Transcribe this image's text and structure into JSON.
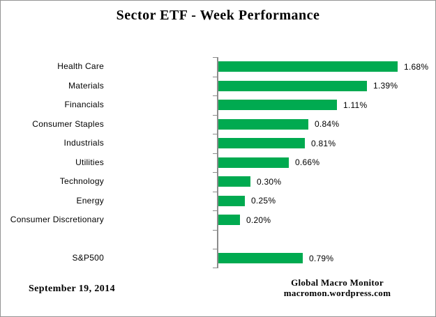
{
  "title": "Sector ETF - Week Performance",
  "footer": {
    "date": "September 19, 2014",
    "source_line1": "Global Macro Monitor",
    "source_line2": "macromon.wordpress.com"
  },
  "colors": {
    "bar": "#00AA50",
    "axis": "#8C8C8C",
    "frame_border": "#949494",
    "background": "#FFFFFF"
  },
  "chart_data": {
    "type": "bar",
    "orientation": "horizontal",
    "title": "Sector ETF - Week Performance",
    "xlabel": "",
    "ylabel": "",
    "categories": [
      "Health Care",
      "Materials",
      "Financials",
      "Consumer Staples",
      "Industrials",
      "Utilities",
      "Technology",
      "Energy",
      "Consumer Discretionary",
      "",
      "S&P500"
    ],
    "values": [
      1.68,
      1.39,
      1.11,
      0.84,
      0.81,
      0.66,
      0.3,
      0.25,
      0.2,
      null,
      0.79
    ],
    "value_labels": [
      "1.68%",
      "1.39%",
      "1.11%",
      "0.84%",
      "0.81%",
      "0.66%",
      "0.30%",
      "0.25%",
      "0.20%",
      "",
      "0.79%"
    ],
    "xlim": [
      0,
      2.0
    ],
    "grid": false,
    "legend": false,
    "data_labels_position": "outside-end"
  }
}
